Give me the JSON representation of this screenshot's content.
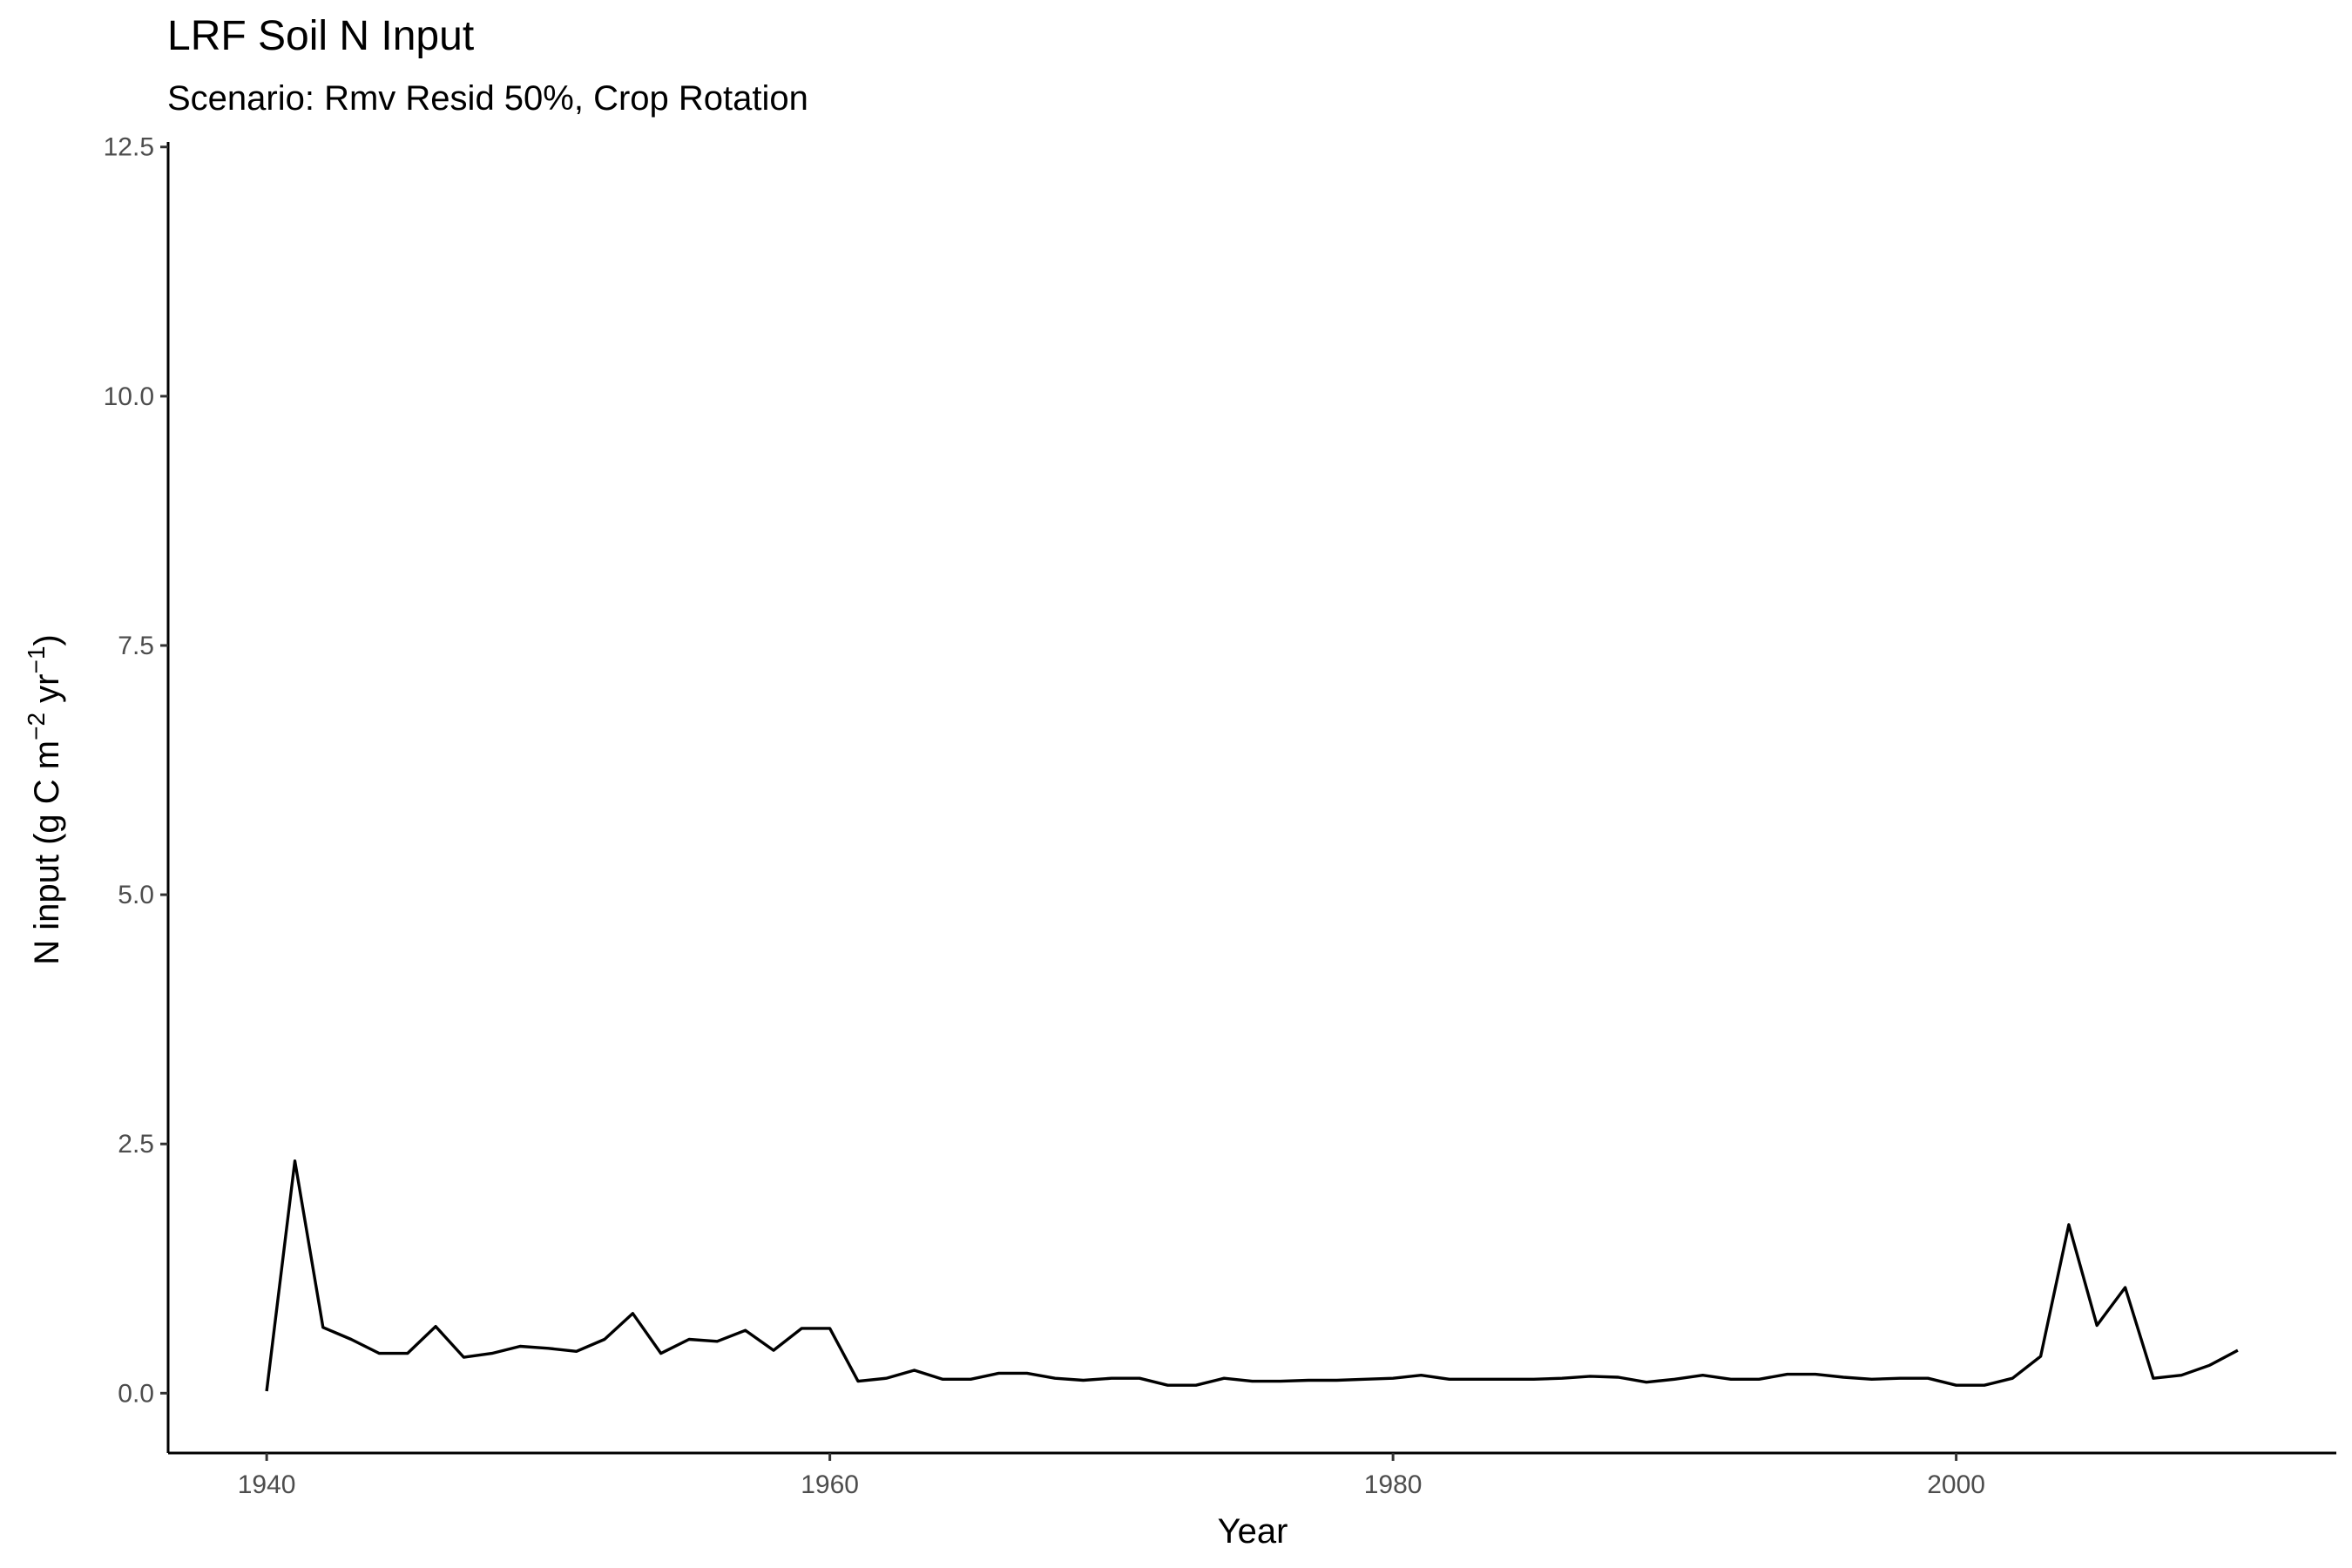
{
  "chart_data": {
    "type": "line",
    "title": "LRF Soil N Input",
    "subtitle": "Scenario: Rmv Resid 50%, Crop Rotation",
    "xlabel": "Year",
    "ylabel": {
      "prefix": "N input (g C m",
      "sup1": "−2",
      "mid": " yr",
      "sup2": "−1",
      "suffix": ")"
    },
    "xlim": [
      1936.5,
      2013.5
    ],
    "ylim": [
      -0.6,
      12.55
    ],
    "x_ticks": [
      1940,
      1960,
      1980,
      2000
    ],
    "x_tick_labels": [
      "1940",
      "1960",
      "1980",
      "2000"
    ],
    "y_ticks": [
      0,
      2.5,
      5,
      7.5,
      10,
      12.5
    ],
    "y_tick_labels": [
      "0.0",
      "2.5",
      "5.0",
      "7.5",
      "10.0",
      "12.5"
    ],
    "grid": false,
    "line_color": "#000000",
    "x": [
      1940,
      1941,
      1942,
      1943,
      1944,
      1945,
      1946,
      1947,
      1948,
      1949,
      1950,
      1951,
      1952,
      1953,
      1954,
      1955,
      1956,
      1957,
      1958,
      1959,
      1960,
      1961,
      1962,
      1963,
      1964,
      1965,
      1966,
      1967,
      1968,
      1969,
      1970,
      1971,
      1972,
      1973,
      1974,
      1975,
      1976,
      1977,
      1978,
      1979,
      1980,
      1981,
      1982,
      1983,
      1984,
      1985,
      1986,
      1987,
      1988,
      1989,
      1990,
      1991,
      1992,
      1993,
      1994,
      1995,
      1996,
      1997,
      1998,
      1999,
      2000,
      2001,
      2002,
      2003,
      2004,
      2005,
      2006,
      2007,
      2008,
      2009,
      2010
    ],
    "y": [
      0.02,
      2.33,
      0.66,
      0.54,
      0.4,
      0.4,
      0.67,
      0.36,
      0.4,
      0.47,
      0.45,
      0.42,
      0.54,
      0.8,
      0.4,
      0.54,
      0.52,
      0.63,
      0.43,
      0.65,
      0.65,
      0.12,
      0.15,
      0.23,
      0.14,
      0.14,
      0.2,
      0.2,
      0.15,
      0.13,
      0.15,
      0.15,
      0.08,
      0.08,
      0.15,
      0.12,
      0.12,
      0.13,
      0.13,
      0.14,
      0.15,
      0.18,
      0.14,
      0.14,
      0.14,
      0.14,
      0.15,
      0.17,
      0.16,
      0.11,
      0.14,
      0.18,
      0.14,
      0.14,
      0.19,
      0.19,
      0.16,
      0.14,
      0.15,
      0.15,
      0.08,
      0.08,
      0.15,
      0.37,
      1.69,
      0.68,
      1.06,
      0.15,
      0.18,
      0.28,
      0.43
    ]
  }
}
